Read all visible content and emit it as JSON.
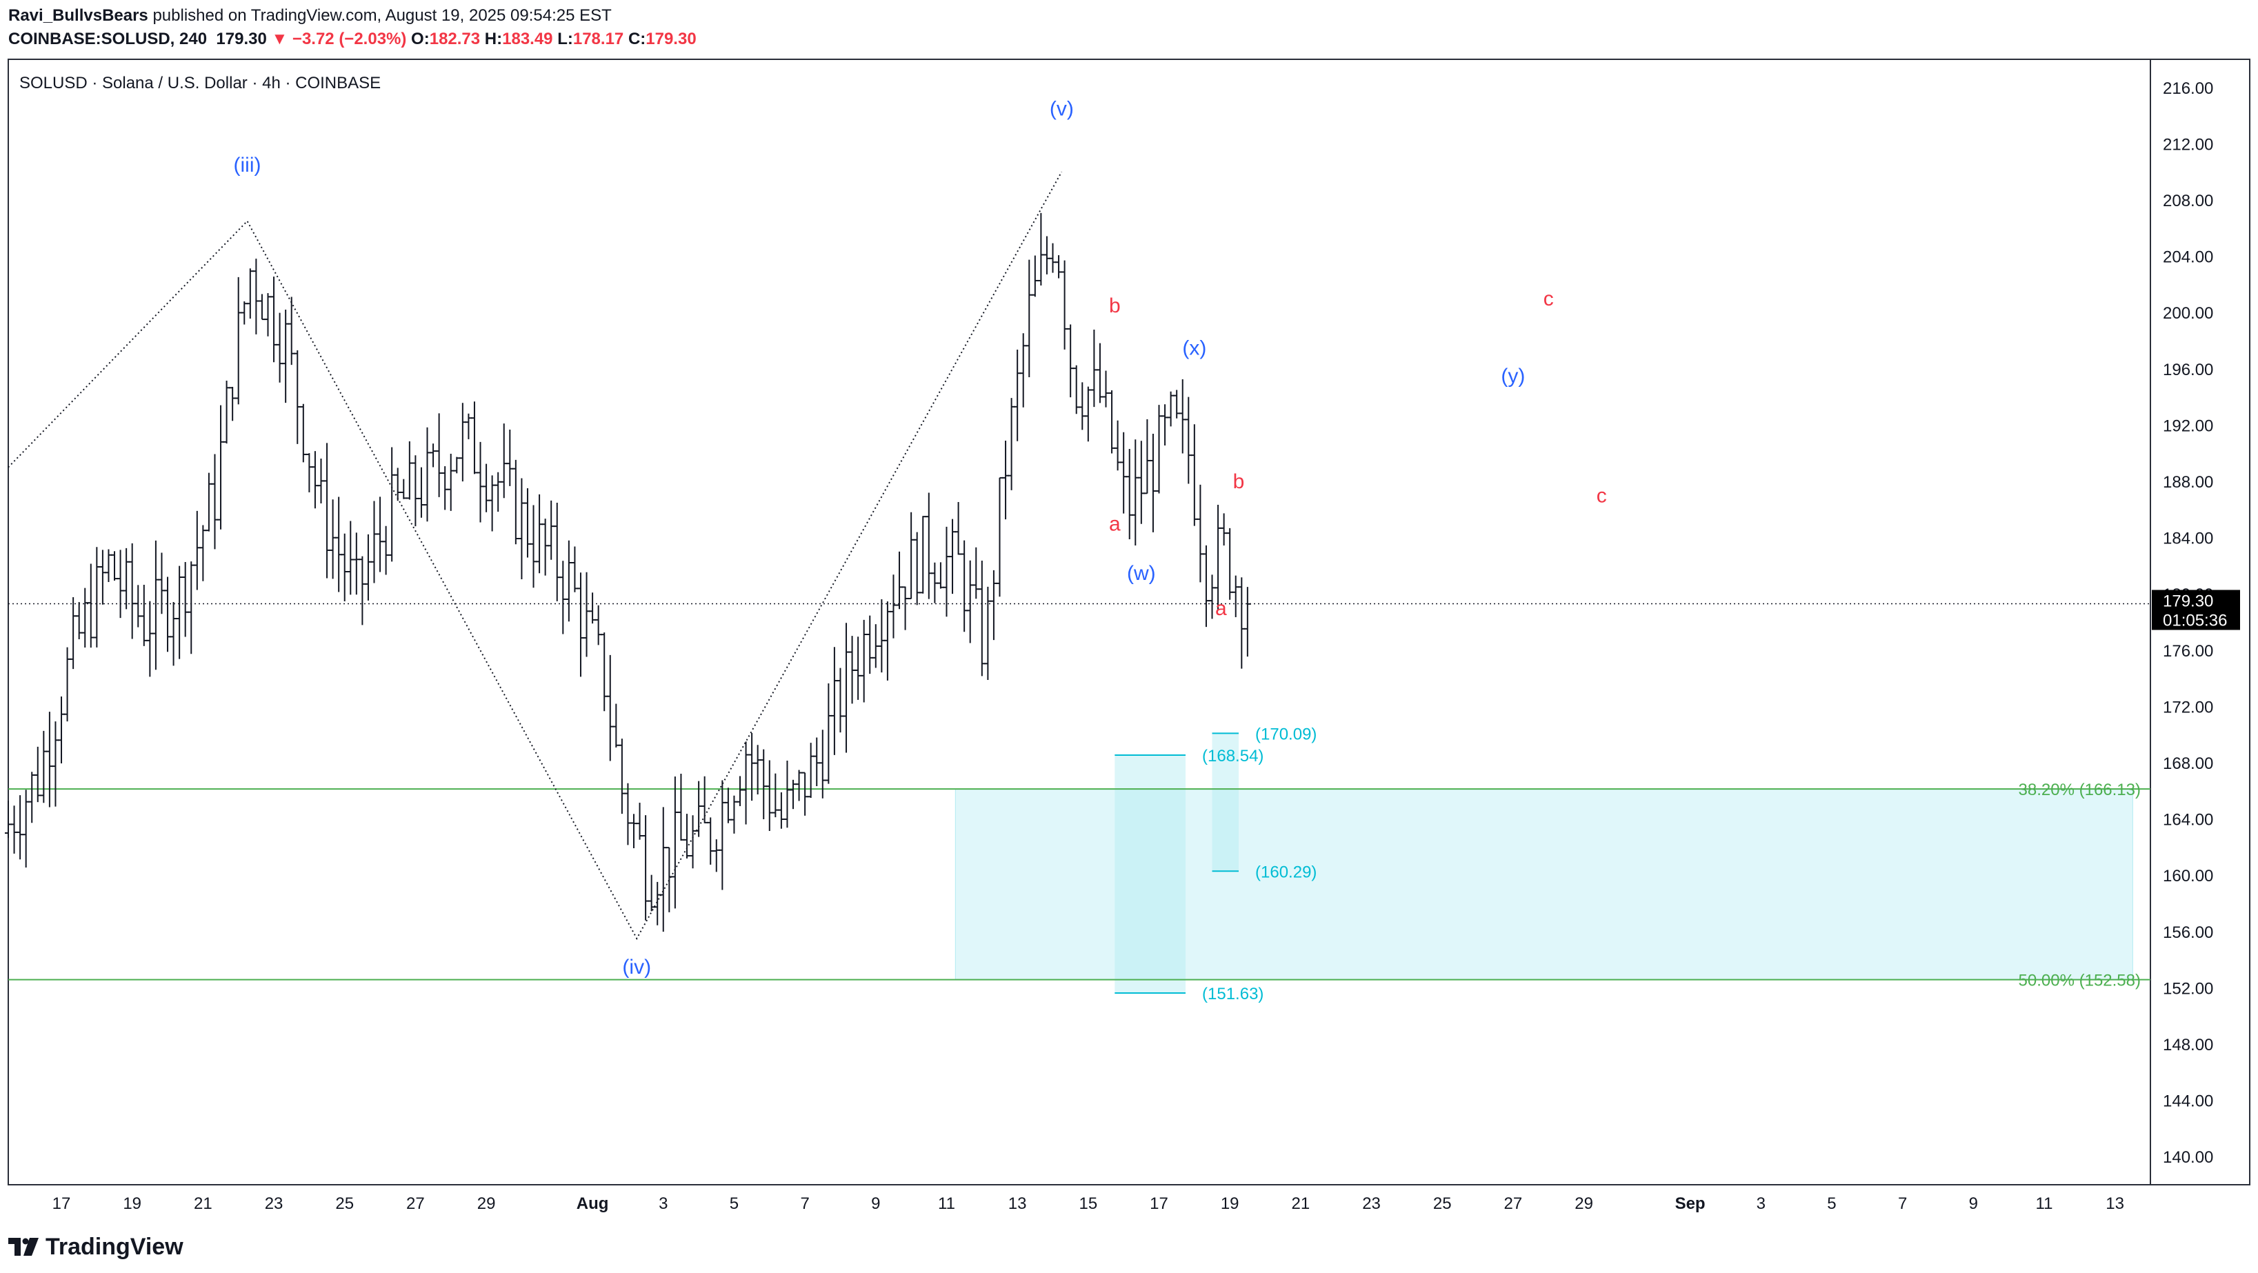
{
  "header": {
    "author": "Ravi_BullvsBears",
    "published_text": "published on TradingView.com, August 19, 2025 09:54:25 EST",
    "symbol_line": "COINBASE:SOLUSD, 240",
    "last_price": "179.30",
    "change_arrow": "▼",
    "change": "−3.72 (−2.03%)",
    "o_label": "O:",
    "o_value": "182.73",
    "h_label": "H:",
    "h_value": "183.49",
    "l_label": "L:",
    "l_value": "178.17",
    "c_label": "C:",
    "c_value": "179.30"
  },
  "brand": {
    "name": "TradingView"
  },
  "colors": {
    "bar": "#131722",
    "wave_blue": "#2962ff",
    "wave_red": "#f23645",
    "fib_green": "#4caf50",
    "target_cyan": "#00bcd4",
    "zone_fill": "#e0f7fa"
  },
  "chart_data": {
    "type": "ohlc",
    "title": "SOLUSD · Solana / U.S. Dollar · 4h · COINBASE",
    "ylim": [
      138,
      218
    ],
    "y_ticks": [
      "216.00",
      "212.00",
      "208.00",
      "204.00",
      "200.00",
      "196.00",
      "192.00",
      "188.00",
      "184.00",
      "180.00",
      "176.00",
      "172.00",
      "168.00",
      "164.00",
      "160.00",
      "156.00",
      "152.00",
      "148.00",
      "144.00",
      "140.00"
    ],
    "x_domain_days": [
      "2025-07-15T12:00",
      "2025-09-14"
    ],
    "x_ticks": [
      {
        "label": "17",
        "date": "2025-07-17"
      },
      {
        "label": "19",
        "date": "2025-07-19"
      },
      {
        "label": "21",
        "date": "2025-07-21"
      },
      {
        "label": "23",
        "date": "2025-07-23"
      },
      {
        "label": "25",
        "date": "2025-07-25"
      },
      {
        "label": "27",
        "date": "2025-07-27"
      },
      {
        "label": "29",
        "date": "2025-07-29"
      },
      {
        "label": "Aug",
        "date": "2025-08-01",
        "bold": true
      },
      {
        "label": "3",
        "date": "2025-08-03"
      },
      {
        "label": "5",
        "date": "2025-08-05"
      },
      {
        "label": "7",
        "date": "2025-08-07"
      },
      {
        "label": "9",
        "date": "2025-08-09"
      },
      {
        "label": "11",
        "date": "2025-08-11"
      },
      {
        "label": "13",
        "date": "2025-08-13"
      },
      {
        "label": "15",
        "date": "2025-08-15"
      },
      {
        "label": "17",
        "date": "2025-08-17"
      },
      {
        "label": "19",
        "date": "2025-08-19"
      },
      {
        "label": "21",
        "date": "2025-08-21"
      },
      {
        "label": "23",
        "date": "2025-08-23"
      },
      {
        "label": "25",
        "date": "2025-08-25"
      },
      {
        "label": "27",
        "date": "2025-08-27"
      },
      {
        "label": "29",
        "date": "2025-08-29"
      },
      {
        "label": "Sep",
        "date": "2025-09-01",
        "bold": true
      },
      {
        "label": "3",
        "date": "2025-09-03"
      },
      {
        "label": "5",
        "date": "2025-09-05"
      },
      {
        "label": "7",
        "date": "2025-09-07"
      },
      {
        "label": "9",
        "date": "2025-09-09"
      },
      {
        "label": "11",
        "date": "2025-09-11"
      },
      {
        "label": "13",
        "date": "2025-09-13"
      }
    ],
    "price_label": {
      "value": 179.3,
      "text": "179.30",
      "countdown": "01:05:36"
    },
    "anchors": [
      {
        "date": "2025-07-15T12:00",
        "price": 163
      },
      {
        "date": "2025-07-16T12:00",
        "price": 167
      },
      {
        "date": "2025-07-17T12:00",
        "price": 176
      },
      {
        "date": "2025-07-18T12:00",
        "price": 182
      },
      {
        "date": "2025-07-19T12:00",
        "price": 178
      },
      {
        "date": "2025-07-20T12:00",
        "price": 180
      },
      {
        "date": "2025-07-21T12:00",
        "price": 187
      },
      {
        "date": "2025-07-22T00:00",
        "price": 196
      },
      {
        "date": "2025-07-22T12:00",
        "price": 203
      },
      {
        "date": "2025-07-23T12:00",
        "price": 198
      },
      {
        "date": "2025-07-24T12:00",
        "price": 186
      },
      {
        "date": "2025-07-25T12:00",
        "price": 180
      },
      {
        "date": "2025-07-26T12:00",
        "price": 186
      },
      {
        "date": "2025-07-27T12:00",
        "price": 188
      },
      {
        "date": "2025-07-28T12:00",
        "price": 191
      },
      {
        "date": "2025-07-29T12:00",
        "price": 188
      },
      {
        "date": "2025-07-30T12:00",
        "price": 184
      },
      {
        "date": "2025-07-31T12:00",
        "price": 181
      },
      {
        "date": "2025-08-01T12:00",
        "price": 174
      },
      {
        "date": "2025-08-02T00:00",
        "price": 166
      },
      {
        "date": "2025-08-02T18:00",
        "price": 160
      },
      {
        "date": "2025-08-03T12:00",
        "price": 162
      },
      {
        "date": "2025-08-04T12:00",
        "price": 163
      },
      {
        "date": "2025-08-05T12:00",
        "price": 169
      },
      {
        "date": "2025-08-06T12:00",
        "price": 164
      },
      {
        "date": "2025-08-07T12:00",
        "price": 168
      },
      {
        "date": "2025-08-08T12:00",
        "price": 175
      },
      {
        "date": "2025-08-09T12:00",
        "price": 180
      },
      {
        "date": "2025-08-10T12:00",
        "price": 183
      },
      {
        "date": "2025-08-11T12:00",
        "price": 182
      },
      {
        "date": "2025-08-12T06:00",
        "price": 176
      },
      {
        "date": "2025-08-12T18:00",
        "price": 188
      },
      {
        "date": "2025-08-13T12:00",
        "price": 200
      },
      {
        "date": "2025-08-14T06:00",
        "price": 206
      },
      {
        "date": "2025-08-14T18:00",
        "price": 195
      },
      {
        "date": "2025-08-15T12:00",
        "price": 194
      },
      {
        "date": "2025-08-16T06:00",
        "price": 186
      },
      {
        "date": "2025-08-16T18:00",
        "price": 188
      },
      {
        "date": "2025-08-17T12:00",
        "price": 192
      },
      {
        "date": "2025-08-18T00:00",
        "price": 190
      },
      {
        "date": "2025-08-18T12:00",
        "price": 182
      },
      {
        "date": "2025-08-19T00:00",
        "price": 183
      },
      {
        "date": "2025-08-19T12:00",
        "price": 180
      }
    ],
    "wave_path": [
      {
        "date": "2025-07-15T12:00",
        "price": 189
      },
      {
        "date": "2025-07-22T06:00",
        "price": 206.5
      },
      {
        "date": "2025-08-02T06:00",
        "price": 155.5
      },
      {
        "date": "2025-08-14T06:00",
        "price": 210
      }
    ],
    "wave_labels": [
      {
        "text": "(iii)",
        "date": "2025-07-22T06:00",
        "price": 210,
        "color": "blue"
      },
      {
        "text": "(iv)",
        "date": "2025-08-02T06:00",
        "price": 153,
        "color": "blue"
      },
      {
        "text": "(v)",
        "date": "2025-08-14T06:00",
        "price": 214,
        "color": "blue"
      },
      {
        "text": "(w)",
        "date": "2025-08-16T12:00",
        "price": 181,
        "color": "blue"
      },
      {
        "text": "(x)",
        "date": "2025-08-18T00:00",
        "price": 197,
        "color": "blue"
      },
      {
        "text": "(y)",
        "date": "2025-08-27T00:00",
        "price": 195,
        "color": "blue"
      },
      {
        "text": "a",
        "date": "2025-08-15T18:00",
        "price": 184.5,
        "color": "red"
      },
      {
        "text": "b",
        "date": "2025-08-15T18:00",
        "price": 200,
        "color": "red"
      },
      {
        "text": "a",
        "date": "2025-08-18T18:00",
        "price": 178.5,
        "color": "red"
      },
      {
        "text": "b",
        "date": "2025-08-19T06:00",
        "price": 187.5,
        "color": "red"
      },
      {
        "text": "c",
        "date": "2025-08-28T00:00",
        "price": 200.5,
        "color": "red"
      },
      {
        "text": "c",
        "date": "2025-08-29T12:00",
        "price": 186.5,
        "color": "red"
      }
    ],
    "fib_levels": [
      {
        "price": 166.13,
        "label": "38.20% (166.13)"
      },
      {
        "price": 152.58,
        "label": "50.00% (152.58)"
      }
    ],
    "zone": {
      "date_start": "2025-08-11T06:00",
      "date_end": "2025-09-13T12:00",
      "top": 166.13,
      "bottom": 152.58
    },
    "zone_overlays": [
      {
        "date_start": "2025-08-15T18:00",
        "date_end": "2025-08-17T18:00",
        "top": 168.54,
        "bottom": 151.63
      },
      {
        "date_start": "2025-08-18T12:00",
        "date_end": "2025-08-19T06:00",
        "top": 170.09,
        "bottom": 160.29
      }
    ],
    "targets": [
      {
        "price": 170.09,
        "text": "(170.09)",
        "date_start": "2025-08-18T12:00",
        "date_end": "2025-08-19T06:00"
      },
      {
        "price": 168.54,
        "text": "(168.54)",
        "date_start": "2025-08-15T18:00",
        "date_end": "2025-08-17T18:00"
      },
      {
        "price": 160.29,
        "text": "(160.29)",
        "date_start": "2025-08-18T12:00",
        "date_end": "2025-08-19T06:00"
      },
      {
        "price": 151.63,
        "text": "(151.63)",
        "date_start": "2025-08-15T18:00",
        "date_end": "2025-08-17T18:00"
      }
    ]
  }
}
